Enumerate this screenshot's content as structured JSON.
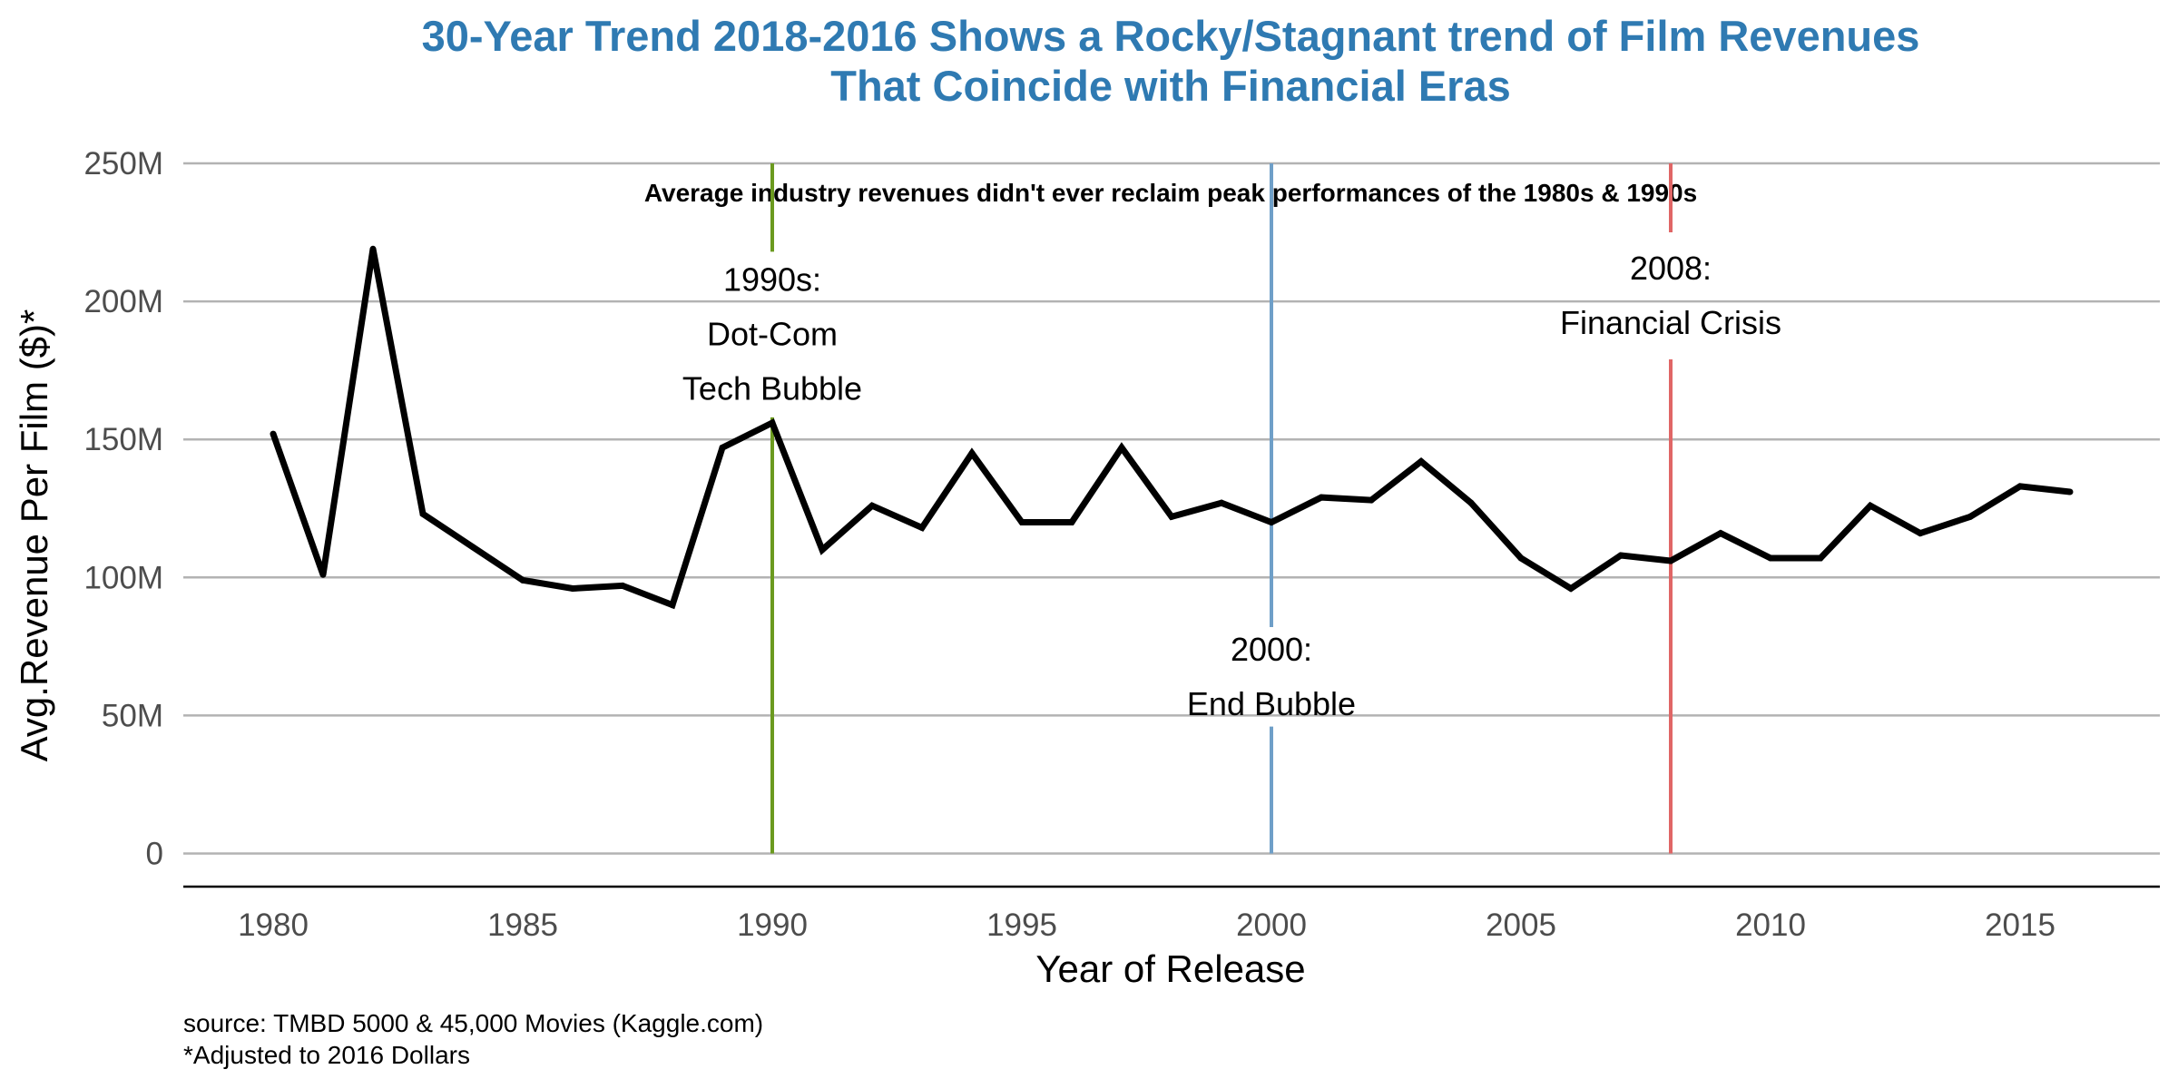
{
  "chart_data": {
    "type": "line",
    "title": [
      "30-Year Trend 2018-2016 Shows a Rocky/Stagnant trend of Film Revenues",
      "That Coincide with Financial Eras"
    ],
    "subtitle": "Average industry revenues didn't ever reclaim peak performances of the 1980s & 1990s",
    "xlabel": "Year of Release",
    "ylabel": "Avg.Revenue Per Film ($)*",
    "xlim": [
      1978.2,
      2017.8
    ],
    "ylim": [
      -12,
      250
    ],
    "x_ticks": [
      1980,
      1985,
      1990,
      1995,
      2000,
      2005,
      2010,
      2015
    ],
    "x_tick_labels": [
      "1980",
      "1985",
      "1990",
      "1995",
      "2000",
      "2005",
      "2010",
      "2015"
    ],
    "y_ticks": [
      0,
      50,
      100,
      150,
      200,
      250
    ],
    "y_tick_labels": [
      "0",
      "50M",
      "100M",
      "150M",
      "200M",
      "250M"
    ],
    "grid": "horizontal",
    "series": [
      {
        "color": "#000000",
        "x": [
          1980,
          1981,
          1982,
          1983,
          1984,
          1985,
          1986,
          1987,
          1988,
          1989,
          1990,
          1991,
          1992,
          1993,
          1994,
          1995,
          1996,
          1997,
          1998,
          1999,
          2000,
          2001,
          2002,
          2003,
          2004,
          2005,
          2006,
          2007,
          2008,
          2009,
          2010,
          2011,
          2012,
          2013,
          2014,
          2015,
          2016
        ],
        "y": [
          152,
          101,
          219,
          123,
          111,
          99,
          96,
          97,
          90,
          147,
          156,
          110,
          126,
          118,
          145,
          120,
          120,
          147,
          122,
          127,
          120,
          129,
          128,
          142,
          127,
          107,
          96,
          108,
          106,
          116,
          107,
          107,
          126,
          116,
          122,
          133,
          131
        ]
      }
    ],
    "annotations": [
      {
        "x": 1990,
        "color": "#6b9a1f",
        "label_lines": [
          "1990s:",
          "Dot-Com",
          "Tech Bubble"
        ],
        "gap": [
          158,
          218
        ]
      },
      {
        "x": 2000,
        "color": "#6f9fc8",
        "label_lines": [
          "2000:",
          "End Bubble"
        ],
        "gap": [
          46,
          82
        ]
      },
      {
        "x": 2008,
        "color": "#e06666",
        "label_lines": [
          "2008:",
          "Financial Crisis"
        ],
        "gap": [
          179,
          225
        ]
      }
    ],
    "caption": [
      "source: TMBD 5000 & 45,000 Movies (Kaggle.com)",
      "*Adjusted to 2016 Dollars"
    ]
  }
}
